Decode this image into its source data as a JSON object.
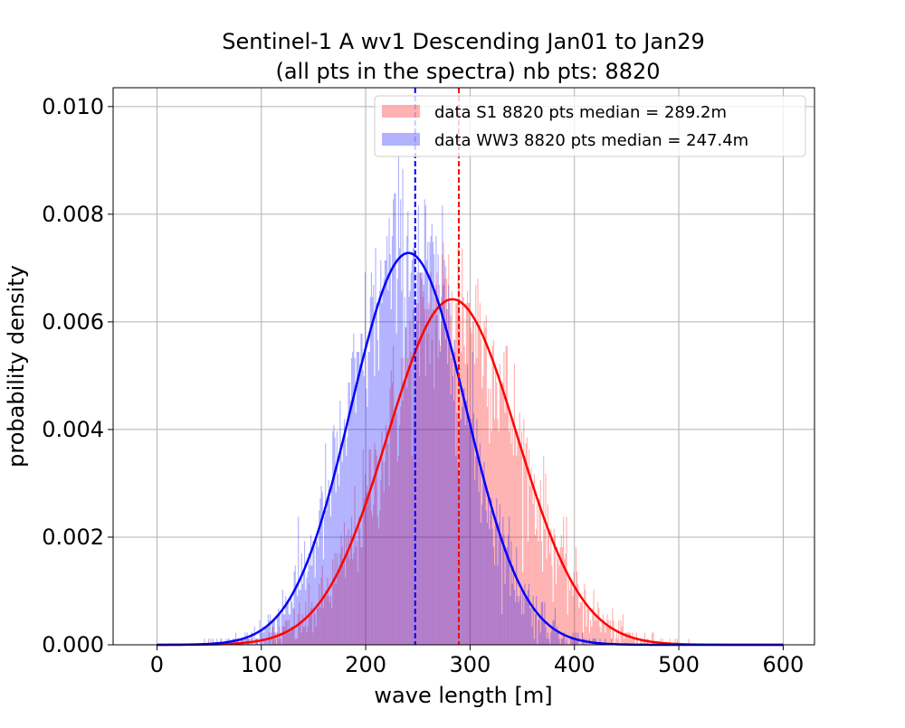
{
  "chart_data": {
    "type": "histogram",
    "title_line1": "Sentinel-1 A wv1 Descending Jan01 to Jan29",
    "title_line2": "(all pts in the spectra) nb pts: 8820",
    "xlabel": "wave length [m]",
    "ylabel": "probability density",
    "xlim": [
      -42,
      630
    ],
    "ylim": [
      0,
      0.01035
    ],
    "x_ticks": [
      0,
      100,
      200,
      300,
      400,
      500,
      600
    ],
    "y_ticks": [
      0.0,
      0.002,
      0.004,
      0.006,
      0.008,
      0.01
    ],
    "y_tick_labels": [
      "0.000",
      "0.002",
      "0.004",
      "0.006",
      "0.008",
      "0.010"
    ],
    "grid": true,
    "legend_position": "upper right",
    "bin_width": 1,
    "hist_range": [
      0,
      600
    ],
    "series": [
      {
        "name": "data S1 8820 pts median = 289.2m",
        "kind": "histogram",
        "color": "#ff0000",
        "alpha": 0.3,
        "median": 289.2,
        "approx_fit": {
          "mean": 283,
          "std": 62,
          "peak_density": 0.00642
        }
      },
      {
        "name": "data WW3 8820 pts median = 247.4m",
        "kind": "histogram",
        "color": "#0000ff",
        "alpha": 0.3,
        "median": 247.4,
        "approx_fit": {
          "mean": 241,
          "std": 55,
          "peak_density": 0.00728
        }
      }
    ],
    "fit_curves": [
      {
        "color": "#ff0000",
        "mean": 283,
        "std": 62,
        "peak": 0.00642
      },
      {
        "color": "#0000ff",
        "mean": 241,
        "std": 55,
        "peak": 0.00728
      }
    ],
    "median_lines": [
      {
        "x": 289.2,
        "color": "#ff0000",
        "style": "dashed"
      },
      {
        "x": 247.4,
        "color": "#0000ff",
        "style": "dashed"
      }
    ]
  }
}
